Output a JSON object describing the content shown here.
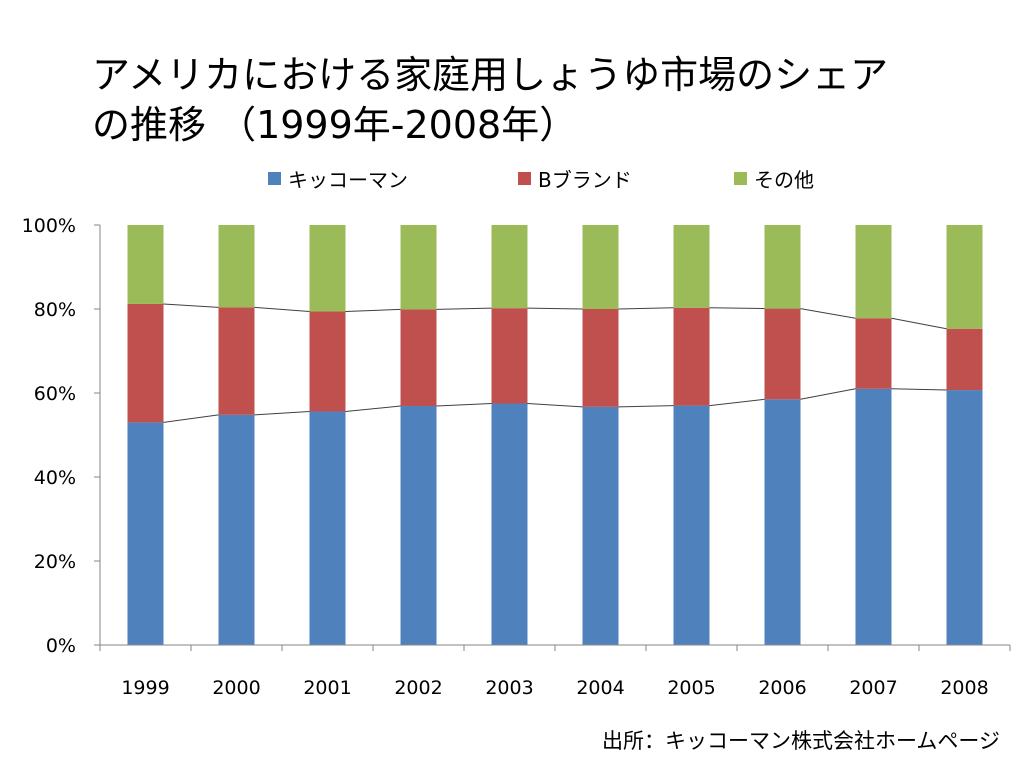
{
  "slide": {
    "title_line1": "アメリカにおける家庭用しょうゆ市場のシェア",
    "title_line2": "の推移 （1999年-2008年）",
    "source": "出所：キッコーマン株式会社ホームページ"
  },
  "chart_data": {
    "type": "bar",
    "stacked": true,
    "normalized": true,
    "categories": [
      "1999",
      "2000",
      "2001",
      "2002",
      "2003",
      "2004",
      "2005",
      "2006",
      "2007",
      "2008"
    ],
    "series": [
      {
        "name": "キッコーマン",
        "color": "#4f81bd",
        "values": [
          53,
          54.8,
          55.6,
          56.9,
          57.5,
          56.7,
          57.0,
          58.5,
          61.0,
          60.7
        ]
      },
      {
        "name": "Bブランド",
        "color": "#c0504d",
        "values": [
          28.2,
          25.6,
          23.8,
          23.0,
          22.7,
          23.3,
          23.3,
          21.6,
          16.8,
          14.6
        ]
      },
      {
        "name": "その他",
        "color": "#9bbb59",
        "values": [
          18.8,
          19.6,
          20.6,
          20.1,
          19.8,
          20.0,
          19.7,
          19.9,
          22.2,
          24.7
        ]
      }
    ],
    "yticks": [
      "0%",
      "20%",
      "40%",
      "60%",
      "80%",
      "100%"
    ],
    "ylim": [
      0,
      100
    ],
    "legend_position": "top",
    "series_lines": true,
    "grid": false
  }
}
